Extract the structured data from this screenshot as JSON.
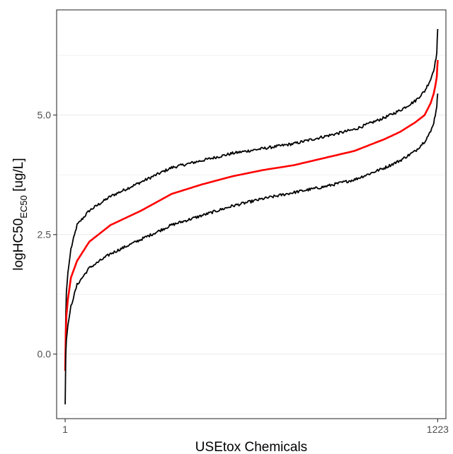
{
  "chart_data": {
    "type": "line",
    "xlabel": "USEtox Chemicals",
    "ylabel": "logHC50",
    "ylabel_subscript": "EC50",
    "ylabel_unit": " [ug/L]",
    "x_ticks": [
      1,
      1223
    ],
    "y_ticks": [
      0.0,
      2.5,
      5.0
    ],
    "y_tick_labels": [
      "0.0",
      "2.5",
      "5.0"
    ],
    "xlim": [
      -27,
      1250
    ],
    "ylim": [
      -1.35,
      7.2
    ],
    "grid": true,
    "legend": "none",
    "colors": {
      "upper": "#000000",
      "median": "#ff0000",
      "lower": "#000000",
      "grid": "#ebebeb",
      "panel_border": "#333333"
    },
    "series": [
      {
        "key": "upper",
        "x": [
          1,
          3,
          5,
          10,
          20,
          40,
          80,
          150,
          250,
          350,
          450,
          550,
          650,
          750,
          850,
          950,
          1050,
          1100,
          1150,
          1180,
          1200,
          1210,
          1215,
          1220,
          1223
        ],
        "values": [
          -0.3,
          0.8,
          1.3,
          1.7,
          2.2,
          2.7,
          3.0,
          3.3,
          3.6,
          3.9,
          4.05,
          4.2,
          4.3,
          4.4,
          4.55,
          4.7,
          4.95,
          5.1,
          5.3,
          5.5,
          5.75,
          5.95,
          6.1,
          6.3,
          6.8
        ]
      },
      {
        "key": "median",
        "x": [
          1,
          3,
          5,
          10,
          20,
          40,
          80,
          150,
          250,
          350,
          450,
          550,
          650,
          750,
          850,
          950,
          1050,
          1100,
          1150,
          1180,
          1200,
          1210,
          1215,
          1220,
          1223
        ],
        "values": [
          -0.35,
          0.4,
          0.8,
          1.15,
          1.6,
          1.95,
          2.35,
          2.7,
          3.0,
          3.35,
          3.55,
          3.72,
          3.85,
          3.95,
          4.1,
          4.25,
          4.5,
          4.65,
          4.85,
          5.0,
          5.25,
          5.45,
          5.6,
          5.8,
          6.15
        ]
      },
      {
        "key": "lower",
        "x": [
          1,
          3,
          5,
          10,
          20,
          40,
          80,
          150,
          250,
          350,
          450,
          550,
          650,
          750,
          850,
          950,
          1050,
          1100,
          1150,
          1180,
          1200,
          1210,
          1215,
          1220,
          1223
        ],
        "values": [
          -1.05,
          0.0,
          0.3,
          0.6,
          1.0,
          1.45,
          1.8,
          2.1,
          2.4,
          2.7,
          2.9,
          3.1,
          3.25,
          3.38,
          3.5,
          3.65,
          3.9,
          4.05,
          4.25,
          4.45,
          4.65,
          4.85,
          5.0,
          5.2,
          5.45
        ]
      }
    ]
  }
}
